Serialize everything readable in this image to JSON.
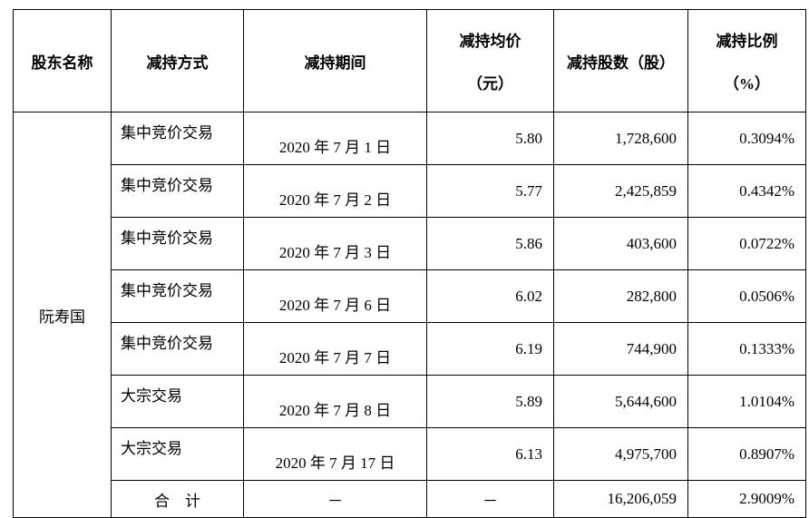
{
  "table": {
    "header": [
      "股东名称",
      "减持方式",
      "减持期间",
      [
        "减持均价",
        "（元）"
      ],
      "减持股数（股）",
      [
        "减持比例",
        "（%）"
      ]
    ],
    "shareholder": "阮寿国",
    "rows": [
      [
        "集中竞价交易",
        "2020 年 7 月 1 日",
        "5.80",
        "1,728,600",
        "0.3094%"
      ],
      [
        "集中竞价交易",
        "2020 年 7 月 2 日",
        "5.77",
        "2,425,859",
        "0.4342%"
      ],
      [
        "集中竞价交易",
        "2020 年 7 月 3 日",
        "5.86",
        "403,600",
        "0.0722%"
      ],
      [
        "集中竞价交易",
        "2020 年 7 月 6 日",
        "6.02",
        "282,800",
        "0.0506%"
      ],
      [
        "集中竞价交易",
        "2020 年 7 月 7 日",
        "6.19",
        "744,900",
        "0.1333%"
      ],
      [
        "大宗交易",
        "2020 年 7 月 8 日",
        "5.89",
        "5,644,600",
        "1.0104%"
      ],
      [
        "大宗交易",
        "2020 年 7 月 17 日",
        "6.13",
        "4,975,700",
        "0.8907%"
      ]
    ],
    "total": [
      "合　计",
      "－",
      "－",
      "16,206,059",
      "2.9009%"
    ]
  }
}
